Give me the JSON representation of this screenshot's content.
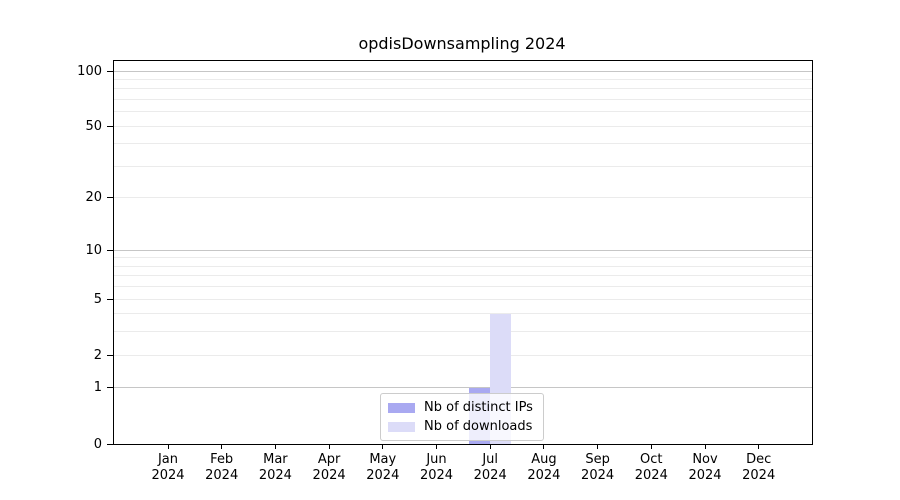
{
  "chart": {
    "title": "opdisDownsampling 2024"
  },
  "chart_data": {
    "type": "bar",
    "title": "opdisDownsampling 2024",
    "categories": [
      "Jan 2024",
      "Feb 2024",
      "Mar 2024",
      "Apr 2024",
      "May 2024",
      "Jun 2024",
      "Jul 2024",
      "Aug 2024",
      "Sep 2024",
      "Oct 2024",
      "Nov 2024",
      "Dec 2024"
    ],
    "series": [
      {
        "name": "Nb of distinct IPs",
        "color": "#a9a9f1",
        "values": [
          0,
          0,
          0,
          0,
          0,
          0,
          1,
          0,
          0,
          0,
          0,
          0
        ]
      },
      {
        "name": "Nb of downloads",
        "color": "#dcdcf8",
        "values": [
          0,
          0,
          0,
          0,
          0,
          0,
          4,
          0,
          0,
          0,
          0,
          0
        ]
      }
    ],
    "xlabel": "",
    "ylabel": "",
    "y_scale": "log1p",
    "y_tick_values": [
      100,
      50,
      20,
      10,
      5,
      2,
      1,
      0
    ],
    "y_tick_labels": [
      "100",
      "50",
      "20",
      "10",
      "5",
      "2",
      "1",
      "0"
    ],
    "y_major_gridlines": [
      1,
      10,
      100
    ],
    "y_minor_gridlines": [
      2,
      3,
      4,
      5,
      6,
      7,
      8,
      9,
      20,
      30,
      40,
      50,
      60,
      70,
      80,
      90
    ],
    "ylim": [
      0,
      110
    ],
    "grid": true,
    "legend_position": "lower center"
  },
  "colors": {
    "background": "#ffffff",
    "spine": "#000000",
    "grid_major": "#c6c6c6",
    "grid_minor": "#ebebeb",
    "text": "#000000",
    "legend_border": "#cccccc",
    "legend_bg": "rgba(255,255,255,0.8)"
  }
}
